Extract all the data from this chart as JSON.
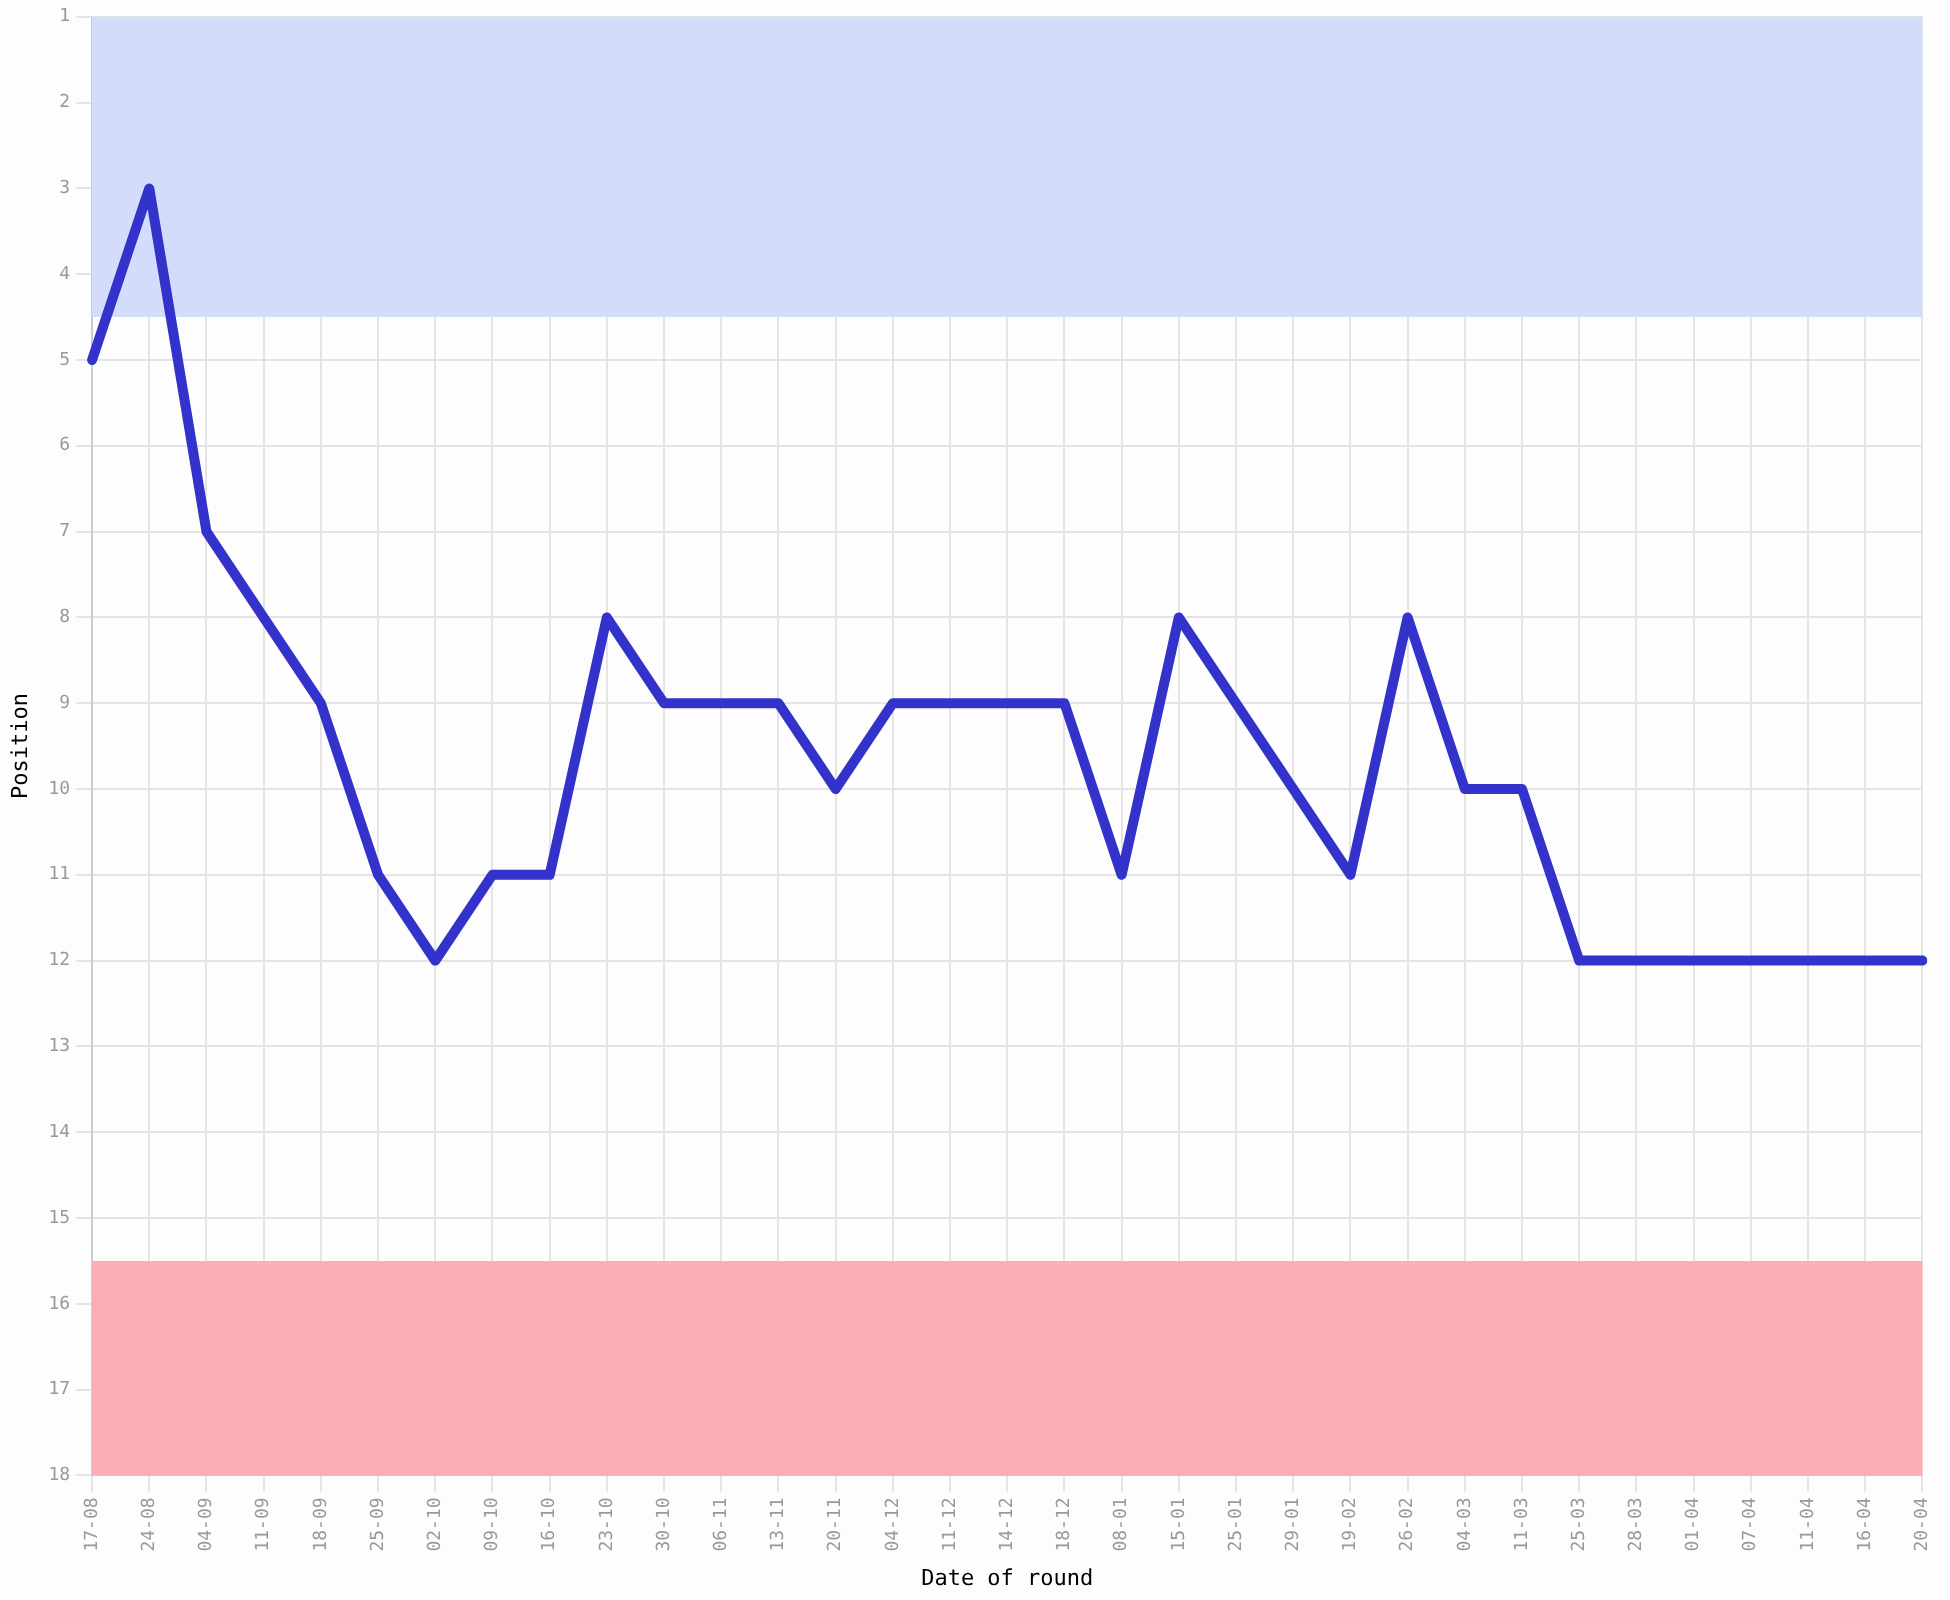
{
  "chart_data": {
    "type": "line",
    "xlabel": "Date of round",
    "ylabel": "Position",
    "categories": [
      "17-08",
      "24-08",
      "04-09",
      "11-09",
      "18-09",
      "25-09",
      "02-10",
      "09-10",
      "16-10",
      "23-10",
      "30-10",
      "06-11",
      "13-11",
      "20-11",
      "04-12",
      "11-12",
      "14-12",
      "18-12",
      "08-01",
      "15-01",
      "25-01",
      "29-01",
      "19-02",
      "26-02",
      "04-03",
      "11-03",
      "25-03",
      "28-03",
      "01-04",
      "07-04",
      "11-04",
      "16-04",
      "20-04"
    ],
    "series": [
      {
        "color": "#3333cc",
        "values": [
          5,
          3,
          7,
          8,
          9,
          11,
          12,
          11,
          11,
          8,
          9,
          9,
          9,
          10,
          9,
          9,
          9,
          9,
          11,
          8,
          9,
          10,
          11,
          8,
          10,
          10,
          12,
          12,
          12,
          12,
          12,
          12,
          12
        ]
      }
    ],
    "ylim": [
      18,
      1
    ],
    "yticks": [
      1,
      2,
      3,
      4,
      5,
      6,
      7,
      8,
      9,
      10,
      11,
      12,
      13,
      14,
      15,
      16,
      17,
      18
    ],
    "bands": [
      {
        "axis": "y",
        "from": 1,
        "to": 4.5,
        "color": "#d4dcfc"
      },
      {
        "axis": "y",
        "from": 15.5,
        "to": 18,
        "color": "#fcaeb4"
      }
    ],
    "grid": true,
    "legend": false,
    "marker": "none",
    "line_style": "solid"
  }
}
